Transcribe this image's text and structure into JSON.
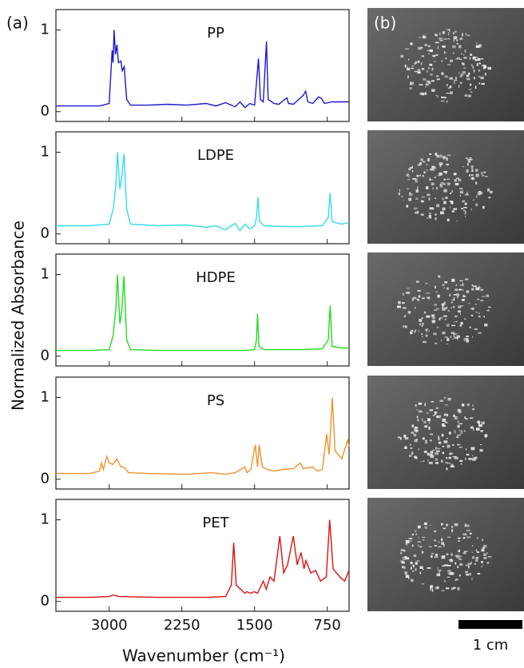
{
  "figure": {
    "label_a": "(a)",
    "label_b": "(b)",
    "y_label": "Normalized Absorbance",
    "x_label": "Wavenumber (cm⁻¹)",
    "scale_label": "1 cm"
  },
  "chart_data": [
    {
      "type": "line",
      "title": "PP",
      "color": "#1a1acc",
      "xlim": [
        3550,
        525
      ],
      "xticks": [
        3000,
        2250,
        1500,
        750
      ],
      "ylim": [
        -0.12,
        1.25
      ],
      "yticks": [
        0,
        1
      ],
      "x": [
        3550,
        3300,
        3100,
        3000,
        2970,
        2960,
        2950,
        2935,
        2920,
        2905,
        2880,
        2865,
        2845,
        2820,
        2780,
        2600,
        2400,
        2200,
        2000,
        1900,
        1800,
        1700,
        1650,
        1600,
        1550,
        1500,
        1460,
        1440,
        1410,
        1377,
        1360,
        1300,
        1250,
        1167,
        1150,
        1100,
        997,
        973,
        950,
        900,
        841,
        808,
        780,
        700,
        525
      ],
      "values": [
        0.07,
        0.07,
        0.07,
        0.1,
        0.75,
        0.6,
        1.0,
        0.7,
        0.82,
        0.6,
        0.62,
        0.5,
        0.55,
        0.15,
        0.08,
        0.08,
        0.09,
        0.08,
        0.1,
        0.07,
        0.11,
        0.06,
        0.12,
        0.05,
        0.1,
        0.08,
        0.65,
        0.15,
        0.12,
        0.86,
        0.15,
        0.1,
        0.09,
        0.17,
        0.1,
        0.09,
        0.2,
        0.25,
        0.12,
        0.1,
        0.18,
        0.16,
        0.1,
        0.12,
        0.12
      ]
    },
    {
      "type": "line",
      "title": "LDPE",
      "color": "#33dde8",
      "xlim": [
        3550,
        525
      ],
      "xticks": [
        3000,
        2250,
        1500,
        750
      ],
      "ylim": [
        -0.12,
        1.25
      ],
      "yticks": [
        0,
        1
      ],
      "x": [
        3550,
        3200,
        3000,
        2960,
        2930,
        2915,
        2890,
        2870,
        2848,
        2820,
        2780,
        2500,
        2200,
        2000,
        1900,
        1800,
        1700,
        1650,
        1600,
        1550,
        1500,
        1480,
        1465,
        1450,
        1400,
        1200,
        1000,
        800,
        740,
        720,
        700,
        600,
        525
      ],
      "values": [
        0.1,
        0.1,
        0.12,
        0.3,
        0.6,
        1.0,
        0.55,
        0.7,
        0.98,
        0.3,
        0.12,
        0.1,
        0.11,
        0.08,
        0.1,
        0.05,
        0.13,
        0.04,
        0.12,
        0.06,
        0.1,
        0.2,
        0.45,
        0.15,
        0.1,
        0.09,
        0.09,
        0.1,
        0.2,
        0.5,
        0.15,
        0.12,
        0.14
      ]
    },
    {
      "type": "line",
      "title": "HDPE",
      "color": "#22dd22",
      "xlim": [
        3550,
        525
      ],
      "xticks": [
        3000,
        2250,
        1500,
        750
      ],
      "ylim": [
        -0.12,
        1.25
      ],
      "yticks": [
        0,
        1
      ],
      "x": [
        3550,
        3200,
        3000,
        2960,
        2930,
        2915,
        2890,
        2870,
        2848,
        2820,
        2780,
        2500,
        2000,
        1600,
        1500,
        1480,
        1470,
        1455,
        1400,
        1000,
        800,
        740,
        720,
        700,
        600,
        525
      ],
      "values": [
        0.07,
        0.07,
        0.08,
        0.25,
        0.6,
        1.0,
        0.4,
        0.55,
        0.98,
        0.2,
        0.08,
        0.07,
        0.07,
        0.07,
        0.08,
        0.2,
        0.52,
        0.12,
        0.08,
        0.08,
        0.09,
        0.2,
        0.62,
        0.12,
        0.1,
        0.1
      ]
    },
    {
      "type": "line",
      "title": "PS",
      "color": "#f0922a",
      "xlim": [
        3550,
        525
      ],
      "xticks": [
        3000,
        2250,
        1500,
        750
      ],
      "ylim": [
        -0.12,
        1.25
      ],
      "yticks": [
        0,
        1
      ],
      "x": [
        3550,
        3200,
        3100,
        3080,
        3060,
        3025,
        3000,
        2960,
        2920,
        2880,
        2850,
        2800,
        2600,
        2200,
        1950,
        1870,
        1800,
        1700,
        1600,
        1580,
        1540,
        1493,
        1470,
        1452,
        1420,
        1370,
        1300,
        1200,
        1100,
        1028,
        1000,
        906,
        850,
        800,
        756,
        730,
        698,
        670,
        600,
        540,
        525
      ],
      "values": [
        0.07,
        0.07,
        0.1,
        0.2,
        0.12,
        0.28,
        0.2,
        0.18,
        0.25,
        0.15,
        0.15,
        0.08,
        0.07,
        0.06,
        0.08,
        0.07,
        0.06,
        0.08,
        0.15,
        0.08,
        0.12,
        0.42,
        0.15,
        0.42,
        0.15,
        0.12,
        0.1,
        0.12,
        0.13,
        0.2,
        0.13,
        0.15,
        0.1,
        0.12,
        0.55,
        0.3,
        1.0,
        0.35,
        0.25,
        0.48,
        0.4
      ]
    },
    {
      "type": "line",
      "title": "PET",
      "color": "#dd1111",
      "xlim": [
        3550,
        525
      ],
      "xticks": [
        3000,
        2250,
        1500,
        750
      ],
      "ylim": [
        -0.12,
        1.25
      ],
      "yticks": [
        0,
        1
      ],
      "x": [
        3550,
        3200,
        3000,
        2960,
        2900,
        2500,
        2000,
        1800,
        1740,
        1715,
        1690,
        1600,
        1580,
        1540,
        1505,
        1470,
        1410,
        1380,
        1340,
        1300,
        1240,
        1200,
        1160,
        1100,
        1060,
        1020,
        990,
        970,
        920,
        870,
        820,
        760,
        725,
        690,
        620,
        570,
        525
      ],
      "values": [
        0.05,
        0.05,
        0.06,
        0.08,
        0.06,
        0.05,
        0.05,
        0.06,
        0.2,
        0.72,
        0.2,
        0.1,
        0.12,
        0.1,
        0.12,
        0.1,
        0.25,
        0.15,
        0.3,
        0.25,
        0.8,
        0.35,
        0.45,
        0.8,
        0.45,
        0.6,
        0.4,
        0.5,
        0.35,
        0.38,
        0.25,
        0.3,
        1.0,
        0.4,
        0.3,
        0.25,
        0.38
      ]
    }
  ]
}
